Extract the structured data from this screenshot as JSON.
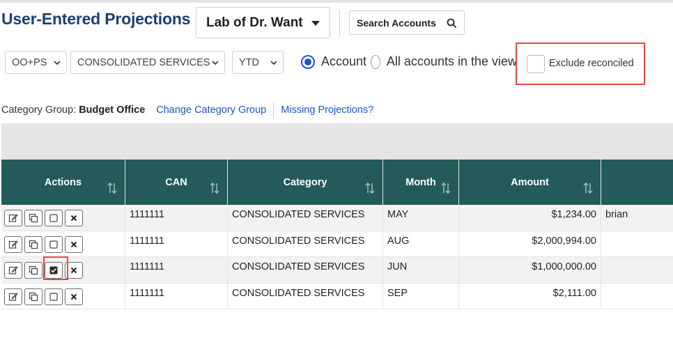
{
  "header": {
    "title": "User-Entered Projections",
    "lab_select": "Lab of Dr. Want",
    "search_button": "Search Accounts"
  },
  "filters": {
    "fund_type": "OO+PS",
    "category": "CONSOLIDATED SERVICES",
    "period": "YTD",
    "radio_account": "Account",
    "radio_all": "All accounts in the view",
    "radio_selected": "Account",
    "exclude_reconciled_label": "Exclude reconciled",
    "exclude_reconciled_checked": false
  },
  "category_group": {
    "label": "Category Group:",
    "value": "Budget Office",
    "change_link": "Change Category Group",
    "missing_link": "Missing Projections?"
  },
  "table": {
    "columns": [
      "Actions",
      "CAN",
      "Category",
      "Month",
      "Amount",
      ""
    ],
    "rows": [
      {
        "can": "1111111",
        "category": "CONSOLIDATED SERVICES",
        "month": "MAY",
        "amount": "$1,234.00",
        "user": "brian",
        "reconciled": false
      },
      {
        "can": "1111111",
        "category": "CONSOLIDATED SERVICES",
        "month": "AUG",
        "amount": "$2,000,994.00",
        "user": "",
        "reconciled": false
      },
      {
        "can": "1111111",
        "category": "CONSOLIDATED SERVICES",
        "month": "JUN",
        "amount": "$1,000,000.00",
        "user": "",
        "reconciled": true
      },
      {
        "can": "1111111",
        "category": "CONSOLIDATED SERVICES",
        "month": "SEP",
        "amount": "$2,111.00",
        "user": "",
        "reconciled": false
      }
    ]
  },
  "colors": {
    "title": "#1c3f73",
    "table_header": "#245a5a",
    "link": "#1e56c8",
    "radio_selected": "#1e56c8",
    "highlight": "#e4474a"
  },
  "icons": {
    "lab_select": "caret-down-icon",
    "search": "search-icon",
    "dropdowns": "chevron-down-icon",
    "sort": "sort-icon",
    "row_actions": [
      "edit-icon",
      "copy-icon",
      "checkbox-icon",
      "delete-icon"
    ]
  }
}
